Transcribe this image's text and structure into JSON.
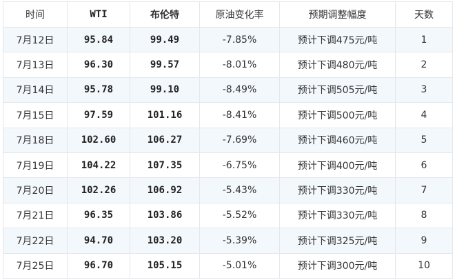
{
  "headers": [
    "时间",
    "WTI",
    "布伦特",
    "原油变化率",
    "预期调整幅度",
    "天数"
  ],
  "rows": [
    [
      "7月12日",
      "95.84",
      "99.49",
      "-7.85%",
      "预计下调475元/吨",
      "1"
    ],
    [
      "7月13日",
      "96.30",
      "99.57",
      "-8.01%",
      "预计下调480元/吨",
      "2"
    ],
    [
      "7月14日",
      "95.78",
      "99.10",
      "-8.49%",
      "预计下调505元/吨",
      "3"
    ],
    [
      "7月15日",
      "97.59",
      "101.16",
      "-8.41%",
      "预计下调500元/吨",
      "4"
    ],
    [
      "7月18日",
      "102.60",
      "106.27",
      "-7.69%",
      "预计下调460元/吨",
      "5"
    ],
    [
      "7月19日",
      "104.22",
      "107.35",
      "-6.75%",
      "预计下调400元/吨",
      "6"
    ],
    [
      "7月20日",
      "102.26",
      "106.92",
      "-5.43%",
      "预计下调330元/吨",
      "7"
    ],
    [
      "7月21日",
      "96.35",
      "103.86",
      "-5.52%",
      "预计下调330元/吨",
      "8"
    ],
    [
      "7月22日",
      "94.70",
      "103.20",
      "-5.39%",
      "预计下调325元/吨",
      "9"
    ],
    [
      "7月25日",
      "96.70",
      "105.15",
      "-5.01%",
      "预计下调300元/吨",
      "10"
    ]
  ],
  "colors": {
    "alt_row": "#f3f8fd",
    "border": "#e3e6ea"
  }
}
